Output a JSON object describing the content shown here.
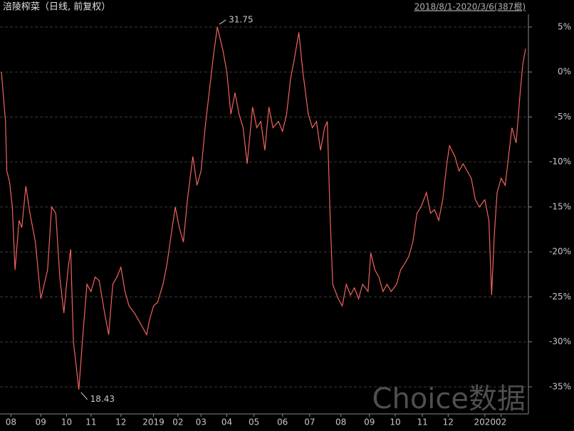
{
  "chart_data": {
    "type": "line",
    "title": "涪陵榨菜（日线, 前复权）",
    "subtitle": "2018/8/1-2020/3/6(387根)",
    "watermark": "Choice数据",
    "xlim": [
      0,
      386
    ],
    "ylim": [
      -37.85,
      6.42
    ],
    "grid": true,
    "xticks": [
      {
        "value": 7,
        "label": "08"
      },
      {
        "value": 29,
        "label": "09"
      },
      {
        "value": 48,
        "label": "10"
      },
      {
        "value": 66,
        "label": "11"
      },
      {
        "value": 88,
        "label": "12"
      },
      {
        "value": 112,
        "label": "2019"
      },
      {
        "value": 130,
        "label": "02"
      },
      {
        "value": 147,
        "label": "03"
      },
      {
        "value": 166,
        "label": "04"
      },
      {
        "value": 186,
        "label": "05"
      },
      {
        "value": 207,
        "label": "06"
      },
      {
        "value": 227,
        "label": "07"
      },
      {
        "value": 250,
        "label": "08"
      },
      {
        "value": 271,
        "label": "09"
      },
      {
        "value": 290,
        "label": "10"
      },
      {
        "value": 310,
        "label": "11"
      },
      {
        "value": 329,
        "label": "12"
      },
      {
        "value": 356,
        "label": "2020"
      },
      {
        "value": 368,
        "label": "02"
      }
    ],
    "yticks": [
      {
        "value": 5,
        "label": "5%"
      },
      {
        "value": 0,
        "label": "0%"
      },
      {
        "value": -5,
        "label": "-5%"
      },
      {
        "value": -10,
        "label": "-10%"
      },
      {
        "value": -15,
        "label": "-15%"
      },
      {
        "value": -20,
        "label": "-20%"
      },
      {
        "value": -25,
        "label": "-25%"
      },
      {
        "value": -30,
        "label": "-30%"
      },
      {
        "value": -35,
        "label": "-35%"
      }
    ],
    "annotations": [
      {
        "label": "31.75",
        "x": 159,
        "y": 5.0
      },
      {
        "label": "18.43",
        "x": 57,
        "y": -35.3
      }
    ],
    "series": [
      {
        "color": "#f0645c",
        "x": [
          0,
          3,
          4,
          6,
          8,
          10,
          13,
          15,
          18,
          21,
          25,
          29,
          34,
          37,
          40,
          43,
          46,
          49,
          51,
          53,
          57,
          60,
          63,
          66,
          69,
          72,
          76,
          79,
          82,
          85,
          88,
          91,
          94,
          98,
          101,
          104,
          107,
          109,
          112,
          115,
          119,
          122,
          125,
          128,
          131,
          134,
          137,
          141,
          144,
          147,
          150,
          153,
          156,
          159,
          163,
          166,
          169,
          172,
          175,
          178,
          181,
          185,
          188,
          191,
          194,
          197,
          200,
          204,
          207,
          210,
          213,
          216,
          219,
          222,
          226,
          229,
          232,
          235,
          238,
          240,
          242,
          244,
          248,
          251,
          254,
          257,
          260,
          263,
          266,
          270,
          272,
          275,
          278,
          281,
          284,
          287,
          291,
          294,
          297,
          300,
          303,
          306,
          309,
          313,
          316,
          319,
          322,
          325,
          328,
          330,
          334,
          337,
          340,
          343,
          346,
          349,
          352,
          356,
          359,
          361,
          363,
          365,
          368,
          371,
          374,
          376,
          379,
          382,
          384,
          386
        ],
        "values": [
          0,
          -5.5,
          -11,
          -12.2,
          -15,
          -22,
          -16.5,
          -17.3,
          -12.7,
          -15.7,
          -18.9,
          -25.2,
          -22,
          -15,
          -15.7,
          -22.8,
          -26.8,
          -22,
          -19.7,
          -30,
          -35.3,
          -29.2,
          -23.6,
          -24.4,
          -22.8,
          -23.2,
          -26.8,
          -29.2,
          -23.6,
          -22.8,
          -21.7,
          -24.4,
          -26,
          -26.8,
          -27.6,
          -28.4,
          -29.2,
          -27.6,
          -26,
          -25.6,
          -23.6,
          -21.3,
          -18.1,
          -15,
          -17.3,
          -18.9,
          -14.2,
          -9.4,
          -12.6,
          -11,
          -6.2,
          -2.3,
          1.7,
          5.0,
          2.5,
          0,
          -4.7,
          -2.3,
          -4.7,
          -6.2,
          -10.2,
          -3.9,
          -6.2,
          -5.5,
          -8.7,
          -3.9,
          -6.2,
          -5.5,
          -6.6,
          -4.7,
          -0.7,
          1.7,
          4.4,
          0,
          -4.7,
          -6.2,
          -5.5,
          -8.7,
          -6.2,
          -5.5,
          -15.7,
          -23.6,
          -25.2,
          -26,
          -23.6,
          -24.8,
          -24,
          -25.2,
          -23.6,
          -24.4,
          -20.1,
          -22,
          -22.8,
          -24.4,
          -23.6,
          -24.4,
          -23.6,
          -22,
          -21.3,
          -20.5,
          -18.9,
          -15.7,
          -15,
          -13.4,
          -15.7,
          -15.3,
          -16.5,
          -14.2,
          -10.2,
          -8.2,
          -9.4,
          -11,
          -10.2,
          -11,
          -11.8,
          -14.2,
          -15,
          -14.2,
          -16.5,
          -24.8,
          -18.1,
          -13.4,
          -11.8,
          -12.6,
          -8.7,
          -6.2,
          -7.9,
          -2.3,
          0.9,
          2.6
        ]
      }
    ]
  }
}
